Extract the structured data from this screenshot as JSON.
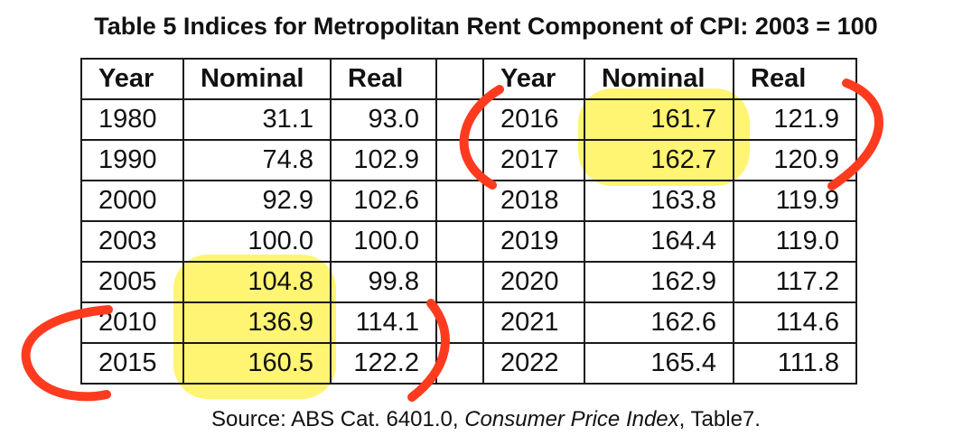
{
  "title": "Table 5   Indices for Metropolitan Rent Component of CPI: 2003 = 100",
  "headers": {
    "year": "Year",
    "nominal": "Nominal",
    "real": "Real"
  },
  "left_rows": [
    {
      "year": "1980",
      "nominal": "31.1",
      "real": "93.0"
    },
    {
      "year": "1990",
      "nominal": "74.8",
      "real": "102.9"
    },
    {
      "year": "2000",
      "nominal": "92.9",
      "real": "102.6"
    },
    {
      "year": "2003",
      "nominal": "100.0",
      "real": "100.0"
    },
    {
      "year": "2005",
      "nominal": "104.8",
      "real": "99.8"
    },
    {
      "year": "2010",
      "nominal": "136.9",
      "real": "114.1"
    },
    {
      "year": "2015",
      "nominal": "160.5",
      "real": "122.2"
    }
  ],
  "right_rows": [
    {
      "year": "2016",
      "nominal": "161.7",
      "real": "121.9"
    },
    {
      "year": "2017",
      "nominal": "162.7",
      "real": "120.9"
    },
    {
      "year": "2018",
      "nominal": "163.8",
      "real": "119.9"
    },
    {
      "year": "2019",
      "nominal": "164.4",
      "real": "119.0"
    },
    {
      "year": "2020",
      "nominal": "162.9",
      "real": "117.2"
    },
    {
      "year": "2021",
      "nominal": "162.6",
      "real": "114.6"
    },
    {
      "year": "2022",
      "nominal": "165.4",
      "real": "111.8"
    }
  ],
  "source": {
    "prefix": "Source: ABS Cat. 6401.0, ",
    "publication": "Consumer Price Index",
    "suffix": ", Table7."
  },
  "annotations": {
    "highlight_color": "#fff35a",
    "bracket_color": "#ff3b1f"
  }
}
